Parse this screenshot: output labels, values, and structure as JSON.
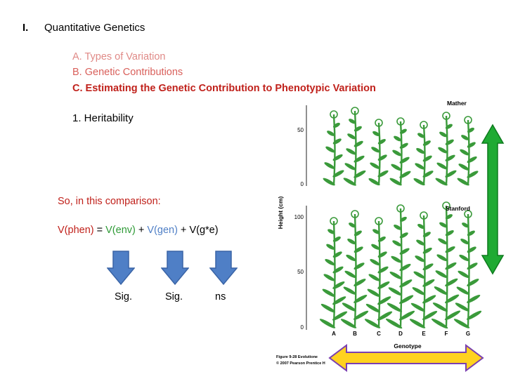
{
  "header": {
    "number": "I.",
    "title": "Quantitative Genetics"
  },
  "outline": {
    "a": "A.  Types of Variation",
    "b": "B. Genetic Contributions",
    "c": "C. Estimating the Genetic Contribution to Phenotypic Variation",
    "one": "1. Heritability"
  },
  "comparison": {
    "intro": "So, in this comparison:",
    "phen": "V(phen)",
    "eq": " = ",
    "env": "V(env)",
    "plus1": " + ",
    "gen": "V(gen)",
    "plus2": " + ",
    "gxe": "V(g*e)"
  },
  "results": {
    "env": "Sig.",
    "gen": "Sig.",
    "gxe": "ns"
  },
  "figure": {
    "top_label": "Mather",
    "bottom_label": "Stanford",
    "y_axis": "Height (cm)",
    "ticks_top": [
      "50",
      "0"
    ],
    "ticks_bottom": [
      "100",
      "50",
      "0"
    ],
    "genotypes": [
      "A",
      "B",
      "C",
      "D",
      "E",
      "F",
      "G"
    ],
    "x_axis": "Genotype",
    "caption1": "Figure 9-28  Evolutione",
    "caption2": "© 2007 Pearson Prentice H"
  },
  "colors": {
    "red": "#c0211b",
    "green": "#2e9a36",
    "blue": "#4f7fc6",
    "arrow_green": "#1faa33",
    "arrow_yellow": "#ffd21f",
    "arrow_purple": "#7a3fb0",
    "plant": "#3a9a3a"
  }
}
